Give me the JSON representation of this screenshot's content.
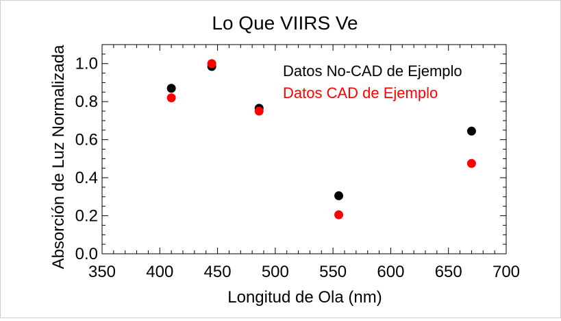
{
  "chart_data": {
    "type": "scatter",
    "title": "Lo Que VIIRS Ve",
    "xlabel": "Longitud de Ola (nm)",
    "ylabel": "Absorción de Luz Normalizada",
    "xlim": [
      350,
      700
    ],
    "ylim": [
      0.0,
      1.1
    ],
    "xticks": [
      350,
      400,
      450,
      500,
      550,
      600,
      650,
      700
    ],
    "xtick_labels": [
      "350",
      "400",
      "450",
      "500",
      "550",
      "600",
      "650",
      "700"
    ],
    "yticks": [
      0.0,
      0.2,
      0.4,
      0.6,
      0.8,
      1.0
    ],
    "ytick_labels": [
      "0.0",
      "0.2",
      "0.4",
      "0.6",
      "0.8",
      "1.0"
    ],
    "grid": false,
    "legend_position": "top-right",
    "series": [
      {
        "name": "Datos No-CAD de Ejemplo",
        "color": "#000000",
        "x": [
          410,
          445,
          486,
          555,
          670
        ],
        "y": [
          0.87,
          0.985,
          0.765,
          0.305,
          0.645
        ]
      },
      {
        "name": "Datos CAD de Ejemplo",
        "color": "#ff0000",
        "x": [
          410,
          445,
          486,
          555,
          670
        ],
        "y": [
          0.82,
          1.0,
          0.75,
          0.205,
          0.475
        ]
      }
    ]
  }
}
